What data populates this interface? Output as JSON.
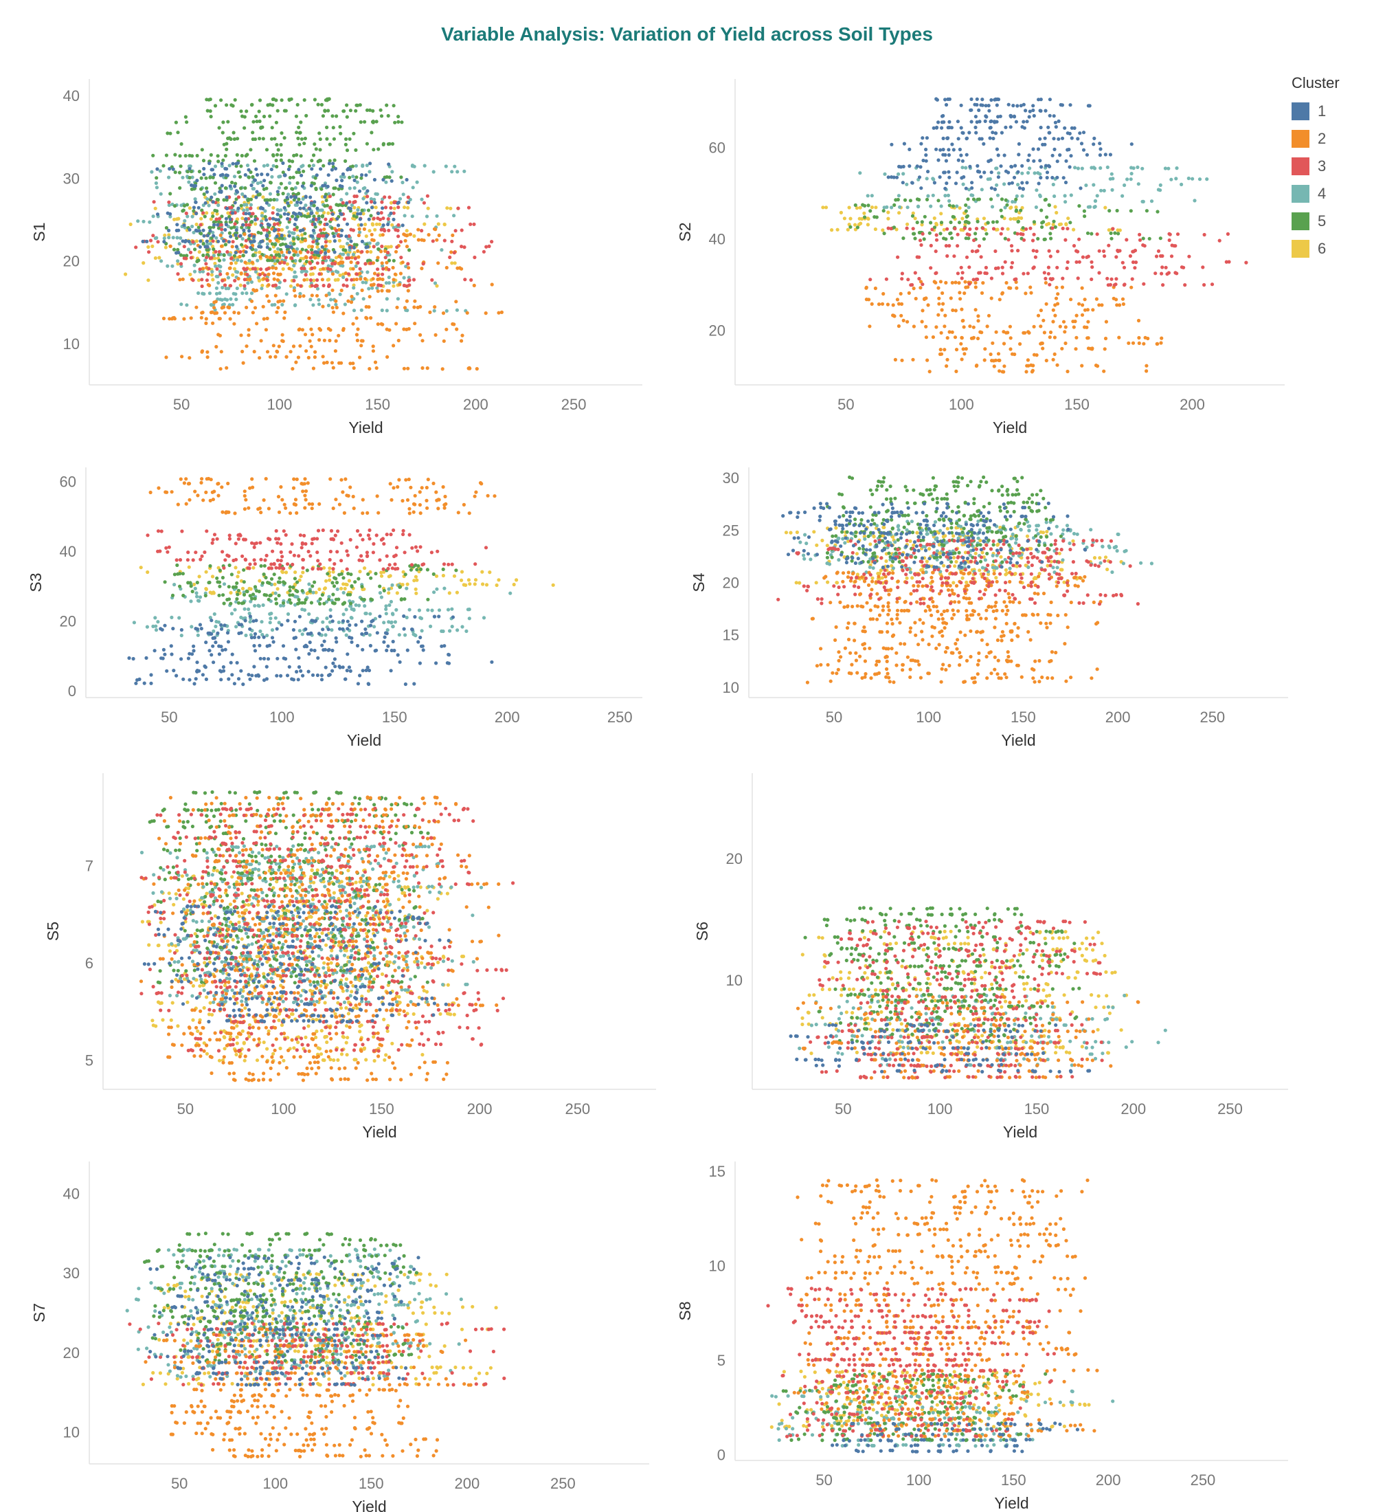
{
  "title": "Variable Analysis: Variation of Yield across Soil Types",
  "legend": {
    "title": "Cluster",
    "items": [
      {
        "label": "1",
        "color": "#4e79a7"
      },
      {
        "label": "2",
        "color": "#f28e2b"
      },
      {
        "label": "3",
        "color": "#e15759"
      },
      {
        "label": "4",
        "color": "#76b7b2"
      },
      {
        "label": "5",
        "color": "#59a14f"
      },
      {
        "label": "6",
        "color": "#edc948"
      }
    ]
  },
  "chart_data": [
    {
      "type": "scatter",
      "ylabel": "S1",
      "xlabel": "Yield",
      "xlim": [
        3,
        285
      ],
      "ylim": [
        5,
        42
      ],
      "xticks": [
        50,
        100,
        150,
        200,
        250
      ],
      "yticks": [
        10,
        20,
        30,
        40
      ],
      "bands": [
        {
          "cluster": 1,
          "y": [
            21,
            32
          ],
          "x": [
            30,
            180
          ]
        },
        {
          "cluster": 2,
          "y": [
            7,
            24
          ],
          "x": [
            35,
            215
          ]
        },
        {
          "cluster": 3,
          "y": [
            17,
            28
          ],
          "x": [
            25,
            220
          ]
        },
        {
          "cluster": 4,
          "y": [
            14,
            32
          ],
          "x": [
            25,
            205
          ]
        },
        {
          "cluster": 5,
          "y": [
            20,
            40
          ],
          "x": [
            30,
            170
          ]
        },
        {
          "cluster": 6,
          "y": [
            17,
            28
          ],
          "x": [
            20,
            200
          ]
        }
      ]
    },
    {
      "type": "scatter",
      "ylabel": "S2",
      "xlabel": "Yield",
      "xlim": [
        2,
        240
      ],
      "ylim": [
        8,
        75
      ],
      "xticks": [
        50,
        100,
        150,
        200
      ],
      "yticks": [
        20,
        40,
        60
      ],
      "bands": [
        {
          "cluster": 1,
          "y": [
            51,
            71
          ],
          "x": [
            65,
            175
          ]
        },
        {
          "cluster": 2,
          "y": [
            11,
            31
          ],
          "x": [
            50,
            195
          ]
        },
        {
          "cluster": 3,
          "y": [
            30,
            43
          ],
          "x": [
            50,
            230
          ]
        },
        {
          "cluster": 4,
          "y": [
            47,
            56
          ],
          "x": [
            45,
            215
          ]
        },
        {
          "cluster": 5,
          "y": [
            40,
            49
          ],
          "x": [
            40,
            190
          ]
        },
        {
          "cluster": 6,
          "y": [
            42,
            47
          ],
          "x": [
            20,
            180
          ]
        }
      ]
    },
    {
      "type": "scatter",
      "ylabel": "S3",
      "xlabel": "Yield",
      "xlim": [
        13,
        260
      ],
      "ylim": [
        -2,
        64
      ],
      "xticks": [
        50,
        100,
        150,
        200,
        250
      ],
      "yticks": [
        0,
        20,
        40,
        60
      ],
      "bands": [
        {
          "cluster": 1,
          "y": [
            2,
            22
          ],
          "x": [
            30,
            200
          ]
        },
        {
          "cluster": 2,
          "y": [
            51,
            61
          ],
          "x": [
            35,
            205
          ]
        },
        {
          "cluster": 3,
          "y": [
            35,
            47
          ],
          "x": [
            35,
            200
          ]
        },
        {
          "cluster": 4,
          "y": [
            16,
            31
          ],
          "x": [
            30,
            205
          ]
        },
        {
          "cluster": 5,
          "y": [
            25,
            36
          ],
          "x": [
            35,
            180
          ]
        },
        {
          "cluster": 6,
          "y": [
            28,
            36
          ],
          "x": [
            20,
            225
          ]
        }
      ]
    },
    {
      "type": "scatter",
      "ylabel": "S4",
      "xlabel": "Yield",
      "xlim": [
        5,
        290
      ],
      "ylim": [
        9,
        31
      ],
      "xticks": [
        50,
        100,
        150,
        200,
        250
      ],
      "yticks": [
        10,
        15,
        20,
        25,
        30
      ],
      "bands": [
        {
          "cluster": 1,
          "y": [
            21.5,
            27.5
          ],
          "x": [
            20,
            185
          ]
        },
        {
          "cluster": 2,
          "y": [
            10.5,
            21
          ],
          "x": [
            30,
            200
          ]
        },
        {
          "cluster": 3,
          "y": [
            18,
            24
          ],
          "x": [
            20,
            225
          ]
        },
        {
          "cluster": 4,
          "y": [
            21,
            26
          ],
          "x": [
            20,
            225
          ]
        },
        {
          "cluster": 5,
          "y": [
            22,
            30
          ],
          "x": [
            40,
            180
          ]
        },
        {
          "cluster": 6,
          "y": [
            20,
            25.5
          ],
          "x": [
            20,
            210
          ]
        }
      ]
    },
    {
      "type": "scatter",
      "ylabel": "S5",
      "xlabel": "Yield",
      "xlim": [
        8,
        290
      ],
      "ylim": [
        4.7,
        7.95
      ],
      "xticks": [
        50,
        100,
        150,
        200,
        250
      ],
      "yticks": [
        5,
        6,
        7
      ],
      "bands": [
        {
          "cluster": 1,
          "y": [
            5.4,
            6.6
          ],
          "x": [
            25,
            190
          ]
        },
        {
          "cluster": 2,
          "y": [
            4.8,
            7.7
          ],
          "x": [
            25,
            215
          ]
        },
        {
          "cluster": 3,
          "y": [
            5.1,
            7.6
          ],
          "x": [
            25,
            225
          ]
        },
        {
          "cluster": 4,
          "y": [
            5.6,
            7.2
          ],
          "x": [
            25,
            210
          ]
        },
        {
          "cluster": 5,
          "y": [
            5.8,
            7.8
          ],
          "x": [
            30,
            180
          ]
        },
        {
          "cluster": 6,
          "y": [
            5.0,
            7.0
          ],
          "x": [
            25,
            200
          ]
        }
      ]
    },
    {
      "type": "scatter",
      "ylabel": "S6",
      "xlabel": "Yield",
      "xlim": [
        3,
        280
      ],
      "ylim": [
        1,
        27
      ],
      "xticks": [
        50,
        100,
        150,
        200,
        250
      ],
      "yticks": [
        10,
        20
      ],
      "bands": [
        {
          "cluster": 1,
          "y": [
            2.5,
            6.5
          ],
          "x": [
            20,
            185
          ]
        },
        {
          "cluster": 2,
          "y": [
            2,
            9
          ],
          "x": [
            20,
            205
          ]
        },
        {
          "cluster": 3,
          "y": [
            2,
            15
          ],
          "x": [
            30,
            195
          ]
        },
        {
          "cluster": 4,
          "y": [
            3,
            9
          ],
          "x": [
            20,
            230
          ]
        },
        {
          "cluster": 5,
          "y": [
            5,
            16
          ],
          "x": [
            30,
            180
          ]
        },
        {
          "cluster": 6,
          "y": [
            4,
            14
          ],
          "x": [
            20,
            210
          ]
        }
      ]
    },
    {
      "type": "scatter",
      "ylabel": "S7",
      "xlabel": "Yield",
      "xlim": [
        3,
        295
      ],
      "ylim": [
        6,
        44
      ],
      "xticks": [
        50,
        100,
        150,
        200,
        250
      ],
      "yticks": [
        10,
        20,
        30,
        40
      ],
      "bands": [
        {
          "cluster": 1,
          "y": [
            16,
            32
          ],
          "x": [
            25,
            185
          ]
        },
        {
          "cluster": 2,
          "y": [
            7,
            23
          ],
          "x": [
            30,
            215
          ]
        },
        {
          "cluster": 3,
          "y": [
            16,
            24
          ],
          "x": [
            20,
            225
          ]
        },
        {
          "cluster": 4,
          "y": [
            17,
            33
          ],
          "x": [
            20,
            205
          ]
        },
        {
          "cluster": 5,
          "y": [
            19,
            35
          ],
          "x": [
            30,
            180
          ]
        },
        {
          "cluster": 6,
          "y": [
            16,
            30
          ],
          "x": [
            20,
            230
          ]
        }
      ]
    },
    {
      "type": "scatter",
      "ylabel": "S8",
      "xlabel": "Yield",
      "xlim": [
        3,
        295
      ],
      "ylim": [
        -0.3,
        15.5
      ],
      "xticks": [
        50,
        100,
        150,
        200,
        250
      ],
      "yticks": [
        0,
        5,
        10,
        15
      ],
      "bands": [
        {
          "cluster": 1,
          "y": [
            0.2,
            1.8
          ],
          "x": [
            20,
            200
          ]
        },
        {
          "cluster": 2,
          "y": [
            1,
            14.7
          ],
          "x": [
            30,
            200
          ]
        },
        {
          "cluster": 3,
          "y": [
            1,
            9
          ],
          "x": [
            20,
            180
          ]
        },
        {
          "cluster": 4,
          "y": [
            0.5,
            3.5
          ],
          "x": [
            20,
            210
          ]
        },
        {
          "cluster": 5,
          "y": [
            0.8,
            4.5
          ],
          "x": [
            20,
            180
          ]
        },
        {
          "cluster": 6,
          "y": [
            1.5,
            4.5
          ],
          "x": [
            20,
            200
          ]
        }
      ]
    }
  ]
}
